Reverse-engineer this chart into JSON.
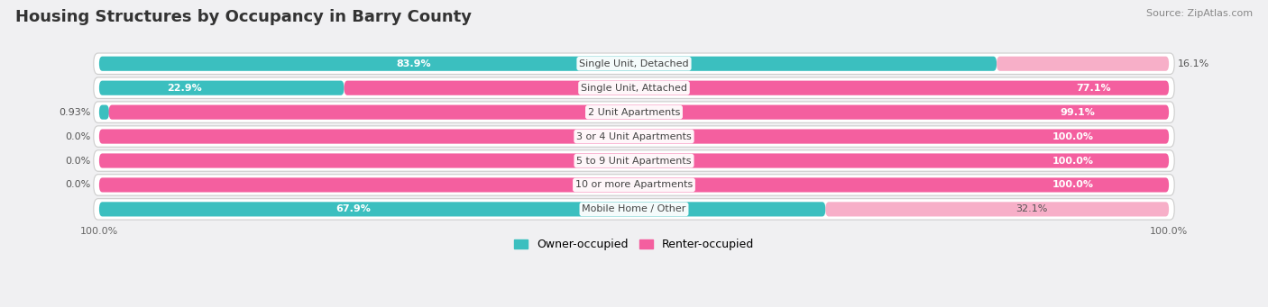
{
  "title": "Housing Structures by Occupancy in Barry County",
  "source": "Source: ZipAtlas.com",
  "categories": [
    "Single Unit, Detached",
    "Single Unit, Attached",
    "2 Unit Apartments",
    "3 or 4 Unit Apartments",
    "5 to 9 Unit Apartments",
    "10 or more Apartments",
    "Mobile Home / Other"
  ],
  "owner_pct": [
    83.9,
    22.9,
    0.93,
    0.0,
    0.0,
    0.0,
    67.9
  ],
  "renter_pct": [
    16.1,
    77.1,
    99.1,
    100.0,
    100.0,
    100.0,
    32.1
  ],
  "owner_color": "#3bbfbf",
  "renter_color_strong": "#f45f9f",
  "renter_color_light": "#f7afc8",
  "owner_color_light": "#8ed8d8",
  "row_bg_color": "#e8e8ec",
  "row_bg_inner": "#f4f4f6",
  "bg_color": "#f0f0f2",
  "title_fontsize": 13,
  "axis_fontsize": 8,
  "bar_label_fontsize": 8,
  "cat_label_fontsize": 8,
  "legend_fontsize": 9,
  "source_fontsize": 8
}
